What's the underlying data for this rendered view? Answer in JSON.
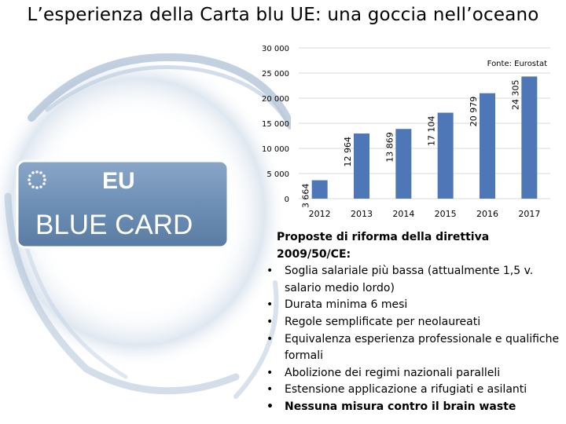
{
  "slide": {
    "title": "L’esperienza della Carta blu UE: una goccia nell’oceano"
  },
  "card": {
    "line1": "EU",
    "line2": "BLUE CARD",
    "background": "#6e8fb5",
    "stars_color": "#ffffff"
  },
  "chart_data": {
    "type": "bar",
    "categories": [
      "2012",
      "2013",
      "2014",
      "2015",
      "2016",
      "2017"
    ],
    "values": [
      3664,
      12964,
      13869,
      17104,
      20979,
      24305
    ],
    "value_labels": [
      "3 664",
      "12 964",
      "13 869",
      "17 104",
      "20 979",
      "24 305"
    ],
    "ylim": [
      0,
      30000
    ],
    "yticks": [
      0,
      5000,
      10000,
      15000,
      20000,
      25000,
      30000
    ],
    "ytick_labels": [
      "0",
      "5 000",
      "10 000",
      "15 000",
      "20 000",
      "25 000",
      "30 000"
    ],
    "gridlines": true,
    "source": "Fonte: Eurostat",
    "bar_color": "#4e77b8",
    "grid_color": "#d9d9d9"
  },
  "reform": {
    "title": "Proposte di riforma della direttiva 2009/50/CE:",
    "bullet_symbol": "•",
    "items": [
      {
        "text": "Soglia salariale più bassa (attualmente 1,5 v. salario medio lordo)"
      },
      {
        "text": "Durata minima 6 mesi"
      },
      {
        "text": "Regole semplificate per neolaureati"
      },
      {
        "text": "Equivalenza esperienza professionale e qualifiche formali"
      },
      {
        "text": "Abolizione dei regimi nazionali paralleli"
      },
      {
        "text": "Estensione applicazione a rifugiati e asilanti"
      },
      {
        "text": "Nessuna misura contro il brain waste"
      }
    ]
  }
}
